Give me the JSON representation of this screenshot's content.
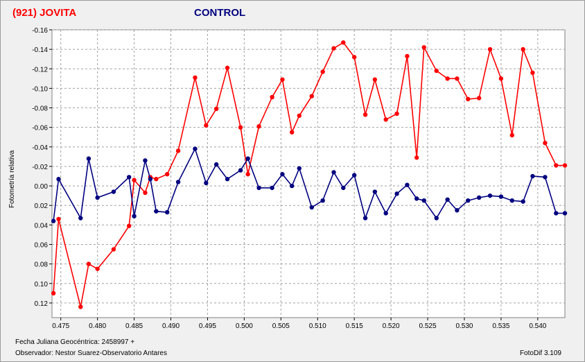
{
  "header": {
    "left_title": "(921) JOVITA",
    "right_title": "CONTROL"
  },
  "footer": {
    "date_label": "Fecha Juliana Geocéntrica: 2458997 +",
    "observer_label": "Observador: Nestor Suarez-Observatorio Antares",
    "software_label": "FotoDif 3.109"
  },
  "chart_data": {
    "type": "line",
    "ylabel": "Fotometría relativa",
    "xlabel": "",
    "xlim": [
      0.4738,
      0.5437
    ],
    "ylim": [
      -0.16,
      0.135
    ],
    "y_inverted": true,
    "grid": true,
    "x_ticks": [
      0.475,
      0.48,
      0.485,
      0.49,
      0.495,
      0.5,
      0.505,
      0.51,
      0.515,
      0.52,
      0.525,
      0.53,
      0.535,
      0.54
    ],
    "x_tick_labels": [
      "0.475",
      "0.480",
      "0.485",
      "0.490",
      "0.495",
      "0.500",
      "0.505",
      "0.510",
      "0.515",
      "0.520",
      "0.525",
      "0.530",
      "0.535",
      "0.540"
    ],
    "y_ticks": [
      -0.16,
      -0.14,
      -0.12,
      -0.1,
      -0.08,
      -0.06,
      -0.04,
      -0.02,
      0.0,
      0.02,
      0.04,
      0.06,
      0.08,
      0.1,
      0.12
    ],
    "y_tick_labels": [
      "-0.16",
      "-0.14",
      "-0.12",
      "-0.10",
      "-0.08",
      "-0.06",
      "-0.04",
      "-0.02",
      "0.00",
      "0.02",
      "0.04",
      "0.06",
      "0.08",
      "0.10",
      "0.12"
    ],
    "series": [
      {
        "name": "(921) JOVITA",
        "color": "#ff0000",
        "x": [
          0.474,
          0.4747,
          0.4777,
          0.4788,
          0.48,
          0.4822,
          0.4843,
          0.485,
          0.4865,
          0.4872,
          0.488,
          0.4895,
          0.491,
          0.4933,
          0.4948,
          0.4962,
          0.4977,
          0.4995,
          0.5005,
          0.502,
          0.5038,
          0.5052,
          0.5065,
          0.5075,
          0.5092,
          0.5107,
          0.5122,
          0.5135,
          0.515,
          0.5165,
          0.5178,
          0.5193,
          0.5208,
          0.5222,
          0.5235,
          0.5245,
          0.5262,
          0.5277,
          0.529,
          0.5305,
          0.532,
          0.5335,
          0.535,
          0.5365,
          0.538,
          0.5393,
          0.541,
          0.5425,
          0.5437
        ],
        "y": [
          0.11,
          0.034,
          0.124,
          0.08,
          0.085,
          0.065,
          0.041,
          -0.006,
          0.007,
          -0.009,
          -0.007,
          -0.012,
          -0.036,
          -0.111,
          -0.062,
          -0.079,
          -0.121,
          -0.06,
          -0.012,
          -0.061,
          -0.091,
          -0.109,
          -0.055,
          -0.072,
          -0.092,
          -0.117,
          -0.141,
          -0.147,
          -0.132,
          -0.073,
          -0.109,
          -0.068,
          -0.074,
          -0.133,
          -0.029,
          -0.142,
          -0.118,
          -0.11,
          -0.11,
          -0.089,
          -0.09,
          -0.14,
          -0.11,
          -0.052,
          -0.14,
          -0.116,
          -0.044,
          -0.021,
          -0.021
        ]
      },
      {
        "name": "CONTROL",
        "color": "#000080",
        "x": [
          0.474,
          0.4747,
          0.4777,
          0.4788,
          0.48,
          0.4822,
          0.4843,
          0.485,
          0.4865,
          0.4872,
          0.488,
          0.4895,
          0.491,
          0.4933,
          0.4948,
          0.4962,
          0.4977,
          0.4995,
          0.5005,
          0.502,
          0.5038,
          0.5052,
          0.5065,
          0.5075,
          0.5092,
          0.5107,
          0.5122,
          0.5135,
          0.515,
          0.5165,
          0.5178,
          0.5193,
          0.5208,
          0.5222,
          0.5235,
          0.5245,
          0.5262,
          0.5277,
          0.529,
          0.5305,
          0.532,
          0.5335,
          0.535,
          0.5365,
          0.538,
          0.5393,
          0.541,
          0.5425,
          0.5437
        ],
        "y": [
          0.036,
          -0.007,
          0.033,
          -0.028,
          0.012,
          0.006,
          -0.009,
          0.031,
          -0.026,
          -0.007,
          0.026,
          0.027,
          -0.004,
          -0.038,
          -0.003,
          -0.022,
          -0.007,
          -0.016,
          -0.028,
          0.002,
          0.002,
          -0.012,
          0.0,
          -0.018,
          0.022,
          0.015,
          -0.014,
          0.002,
          -0.011,
          0.033,
          0.006,
          0.028,
          0.008,
          -0.001,
          0.013,
          0.015,
          0.033,
          0.014,
          0.025,
          0.015,
          0.012,
          0.01,
          0.011,
          0.015,
          0.016,
          -0.01,
          -0.009,
          0.028,
          0.028
        ]
      }
    ]
  }
}
